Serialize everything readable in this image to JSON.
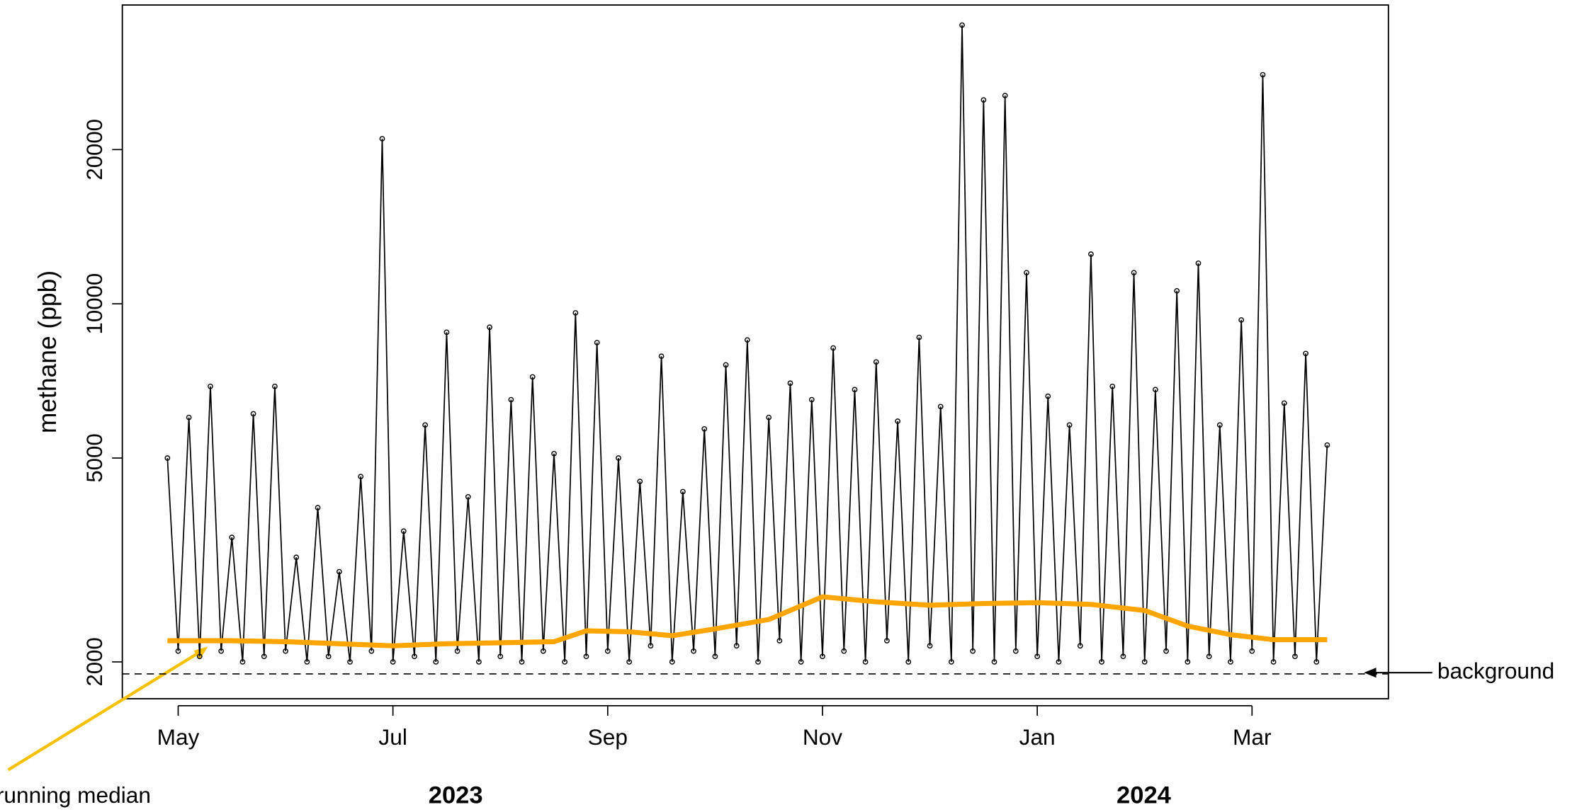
{
  "chart_data": {
    "type": "line",
    "ylabel": "methane (ppb)",
    "log_y": true,
    "ylim": [
      1695,
      38300
    ],
    "yticks": [
      2000,
      5000,
      10000,
      20000
    ],
    "xlim": [
      -0.52,
      11.27
    ],
    "xticks": [
      {
        "value": 0,
        "label": "May"
      },
      {
        "value": 2,
        "label": "Jul"
      },
      {
        "value": 4,
        "label": "Sep"
      },
      {
        "value": 6,
        "label": "Nov"
      },
      {
        "value": 8,
        "label": "Jan"
      },
      {
        "value": 10,
        "label": "Mar"
      }
    ],
    "year_labels": [
      "2023",
      "2024"
    ],
    "color": "#000000",
    "x": [
      -0.1,
      0.0,
      0.1,
      0.2,
      0.3,
      0.4,
      0.5,
      0.6,
      0.7,
      0.8,
      0.9,
      1.0,
      1.1,
      1.2,
      1.3,
      1.4,
      1.5,
      1.6,
      1.7,
      1.8,
      1.9,
      2.0,
      2.1,
      2.2,
      2.3,
      2.4,
      2.5,
      2.6,
      2.7,
      2.8,
      2.9,
      3.0,
      3.1,
      3.2,
      3.3,
      3.4,
      3.5,
      3.6,
      3.7,
      3.8,
      3.9,
      4.0,
      4.1,
      4.2,
      4.3,
      4.4,
      4.5,
      4.6,
      4.7,
      4.8,
      4.9,
      5.0,
      5.1,
      5.2,
      5.3,
      5.4,
      5.5,
      5.6,
      5.7,
      5.8,
      5.9,
      6.0,
      6.1,
      6.2,
      6.3,
      6.4,
      6.5,
      6.6,
      6.7,
      6.8,
      6.9,
      7.0,
      7.1,
      7.2,
      7.3,
      7.4,
      7.5,
      7.6,
      7.7,
      7.8,
      7.9,
      8.0,
      8.1,
      8.2,
      8.3,
      8.4,
      8.5,
      8.6,
      8.7,
      8.8,
      8.9,
      9.0,
      9.1,
      9.2,
      9.3,
      9.4,
      9.5,
      9.6,
      9.7,
      9.8,
      9.9,
      10.0,
      10.1,
      10.2,
      10.3,
      10.4,
      10.5,
      10.6,
      10.7
    ],
    "values": [
      5000,
      2100,
      6000,
      2050,
      6900,
      2100,
      3500,
      2000,
      6100,
      2050,
      6900,
      2100,
      3200,
      2000,
      4000,
      2050,
      3000,
      2000,
      4600,
      2100,
      21000,
      2000,
      3600,
      2050,
      5800,
      2000,
      8800,
      2100,
      4200,
      2000,
      9000,
      2050,
      6500,
      2000,
      7200,
      2100,
      5100,
      2000,
      9600,
      2050,
      8400,
      2100,
      5000,
      2000,
      4500,
      2150,
      7900,
      2000,
      4300,
      2100,
      5700,
      2050,
      7600,
      2150,
      8500,
      2000,
      6000,
      2200,
      7000,
      2000,
      6500,
      2050,
      8200,
      2100,
      6800,
      2000,
      7700,
      2200,
      5900,
      2000,
      8600,
      2150,
      6300,
      2000,
      35000,
      2100,
      25000,
      2000,
      25500,
      2100,
      11500,
      2050,
      6600,
      2000,
      5800,
      2150,
      12500,
      2000,
      6900,
      2050,
      11500,
      2000,
      6800,
      2100,
      10600,
      2000,
      12000,
      2050,
      5800,
      2000,
      9300,
      2100,
      28000,
      2000,
      6400,
      2050,
      8000,
      2000,
      5300
    ],
    "median": {
      "label": "running median",
      "color": "#ffa500",
      "x": [
        -0.1,
        0.5,
        1.0,
        1.5,
        2.0,
        2.5,
        3.0,
        3.5,
        3.8,
        4.2,
        4.6,
        5.0,
        5.5,
        6.0,
        6.5,
        7.0,
        7.5,
        8.0,
        8.5,
        9.0,
        9.4,
        9.8,
        10.2,
        10.7
      ],
      "values": [
        2200,
        2200,
        2190,
        2170,
        2150,
        2170,
        2180,
        2190,
        2300,
        2290,
        2250,
        2320,
        2420,
        2680,
        2620,
        2580,
        2600,
        2610,
        2590,
        2520,
        2350,
        2260,
        2210,
        2210
      ]
    },
    "background": {
      "label": "background",
      "value": 1895
    }
  }
}
